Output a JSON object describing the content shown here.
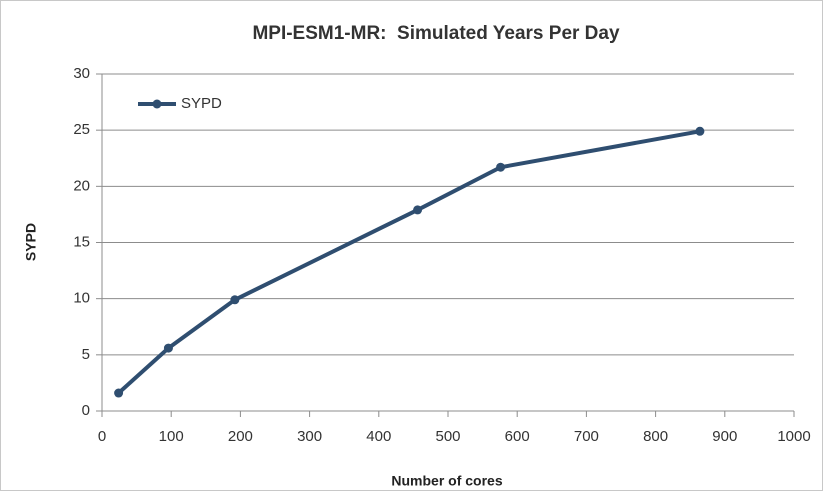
{
  "chart_data": {
    "type": "line",
    "title": "MPI-ESM1-MR:  Simulated Years Per Day",
    "x_label": "Number of cores",
    "y_label": "SYPD",
    "series": [
      {
        "name": "SYPD",
        "color": "#2f4e70",
        "x": [
          24,
          96,
          192,
          456,
          576,
          864
        ],
        "values": [
          1.6,
          5.6,
          9.9,
          17.9,
          21.7,
          24.9
        ]
      }
    ],
    "xlim": [
      0,
      1000
    ],
    "xticks": [
      0,
      100,
      200,
      300,
      400,
      500,
      600,
      700,
      800,
      900,
      1000
    ],
    "ylim": [
      0,
      30
    ],
    "yticks": [
      0,
      5,
      10,
      15,
      20,
      25,
      30
    ],
    "grid": true,
    "legend": "top-left"
  }
}
